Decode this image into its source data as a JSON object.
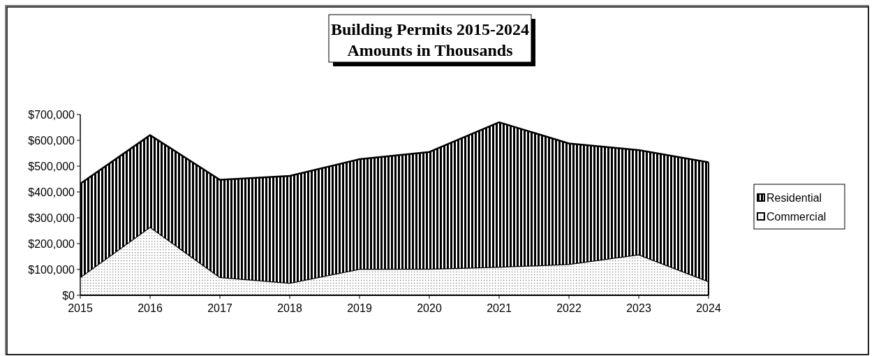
{
  "chart_data": {
    "type": "area",
    "title": "Building Permits 2015-2024",
    "subtitle": "Amounts in Thousands",
    "categories": [
      "2015",
      "2016",
      "2017",
      "2018",
      "2019",
      "2020",
      "2021",
      "2022",
      "2023",
      "2024"
    ],
    "stacked": true,
    "series": [
      {
        "name": "Commercial",
        "color": "#808080",
        "values": [
          70000,
          265000,
          70000,
          48000,
          102000,
          103000,
          110000,
          121000,
          158000,
          54000
        ]
      },
      {
        "name": "Residential",
        "color": "#000000",
        "values": [
          362000,
          355000,
          377000,
          414000,
          425000,
          452000,
          560000,
          467000,
          404000,
          461000
        ]
      }
    ],
    "ylim": [
      0,
      700000
    ],
    "yticks": [
      {
        "value": 0,
        "label": "$0"
      },
      {
        "value": 100000,
        "label": "$100,000"
      },
      {
        "value": 200000,
        "label": "$200,000"
      },
      {
        "value": 300000,
        "label": "$300,000"
      },
      {
        "value": 400000,
        "label": "$400,000"
      },
      {
        "value": 500000,
        "label": "$500,000"
      },
      {
        "value": 600000,
        "label": "$600,000"
      },
      {
        "value": 700000,
        "label": "$700,000"
      }
    ],
    "grid": false,
    "legend": "right"
  }
}
